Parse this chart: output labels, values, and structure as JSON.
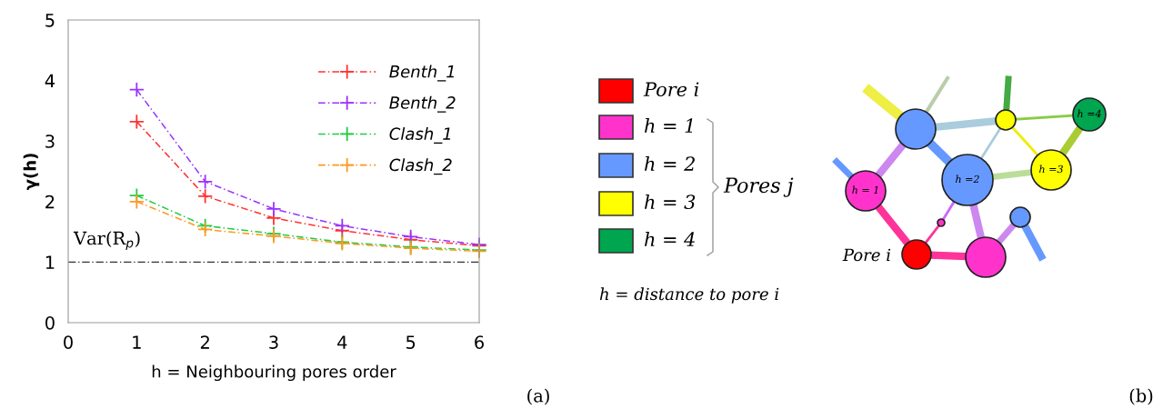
{
  "chart_data": [
    {
      "type": "line",
      "xlabel": "h = Neighbouring pores order",
      "ylabel": "γ(h)",
      "x": [
        1,
        2,
        3,
        4,
        5,
        6
      ],
      "series": [
        {
          "name": "Benth_1",
          "color": "#ff3333",
          "values": [
            3.32,
            2.09,
            1.73,
            1.52,
            1.37,
            1.27
          ]
        },
        {
          "name": "Benth_2",
          "color": "#9933ff",
          "values": [
            3.85,
            2.33,
            1.88,
            1.6,
            1.42,
            1.29
          ]
        },
        {
          "name": "Clash_1",
          "color": "#22cc44",
          "values": [
            2.1,
            1.6,
            1.47,
            1.33,
            1.25,
            1.2
          ]
        },
        {
          "name": "Clash_2",
          "color": "#ff9922",
          "values": [
            2.0,
            1.54,
            1.43,
            1.31,
            1.23,
            1.18
          ]
        }
      ],
      "xlim": [
        0,
        6
      ],
      "ylim": [
        0,
        5
      ],
      "xticks": [
        0,
        1,
        2,
        3,
        4,
        5,
        6
      ],
      "yticks": [
        0,
        1,
        2,
        3,
        4,
        5
      ],
      "ref_lines": [
        {
          "axis": "y",
          "value": 1,
          "label": "Var(R$_{p}$)",
          "color": "#333333"
        }
      ],
      "marker": "cross",
      "line_style": "dashed",
      "legend": "top right",
      "grid": false,
      "annotations": [
        "(a)"
      ]
    },
    {
      "type": "other",
      "annotations": [
        "Pore i",
        "h = 1",
        "h = 2",
        "h = 3",
        "h = 4",
        "Pores j",
        "h = distance to pore i",
        "h = 1",
        "h =2",
        "h =3",
        "h =4",
        "Pore i",
        "(b)"
      ]
    }
  ]
}
